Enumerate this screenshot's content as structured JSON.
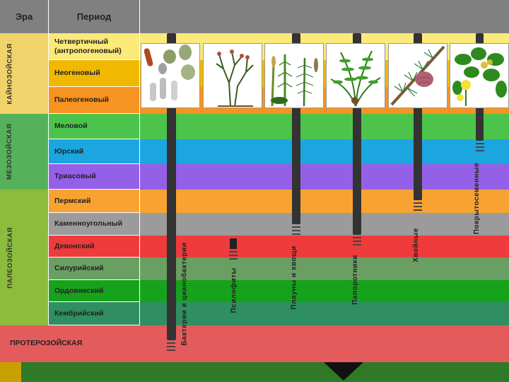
{
  "header": {
    "era": "Эра",
    "period": "Период"
  },
  "eras": [
    {
      "name": "КАЙНОЗОЙСКАЯ",
      "color": "#f1d36b"
    },
    {
      "name": "МЕЗОЗОЙСКАЯ",
      "color": "#56b25a"
    },
    {
      "name": "ПАЛЕОЗОЙСКАЯ",
      "color": "#8cbc3c"
    },
    {
      "name": "ПРОТЕРОЗОЙСКАЯ",
      "color": "#e45b5b"
    }
  ],
  "periods": [
    {
      "name": "Четвертичный (антропогеновый)",
      "color": "#fbe97a"
    },
    {
      "name": "Неогеновый",
      "color": "#f0b800"
    },
    {
      "name": "Палеогеновый",
      "color": "#f79321"
    },
    {
      "name": "Меловой",
      "color": "#4cc44c"
    },
    {
      "name": "Юрский",
      "color": "#1ca6df"
    },
    {
      "name": "Триасовый",
      "color": "#9460e8"
    },
    {
      "name": "Пермский",
      "color": "#f8a331"
    },
    {
      "name": "Каменноугольный",
      "color": "#9b9b9b"
    },
    {
      "name": "Девонский",
      "color": "#ef3b3b"
    },
    {
      "name": "Силурийский",
      "color": "#6a9f63"
    },
    {
      "name": "Ордовикский",
      "color": "#16a31b"
    },
    {
      "name": "Кембрийский",
      "color": "#2f8f63"
    }
  ],
  "groups": [
    "Бактерии и цианобактерии",
    "Псилофиты",
    "Плауны и хвощи",
    "Папоротники",
    "Хвойные",
    "Покрытосеменные"
  ],
  "illustrations": [
    "bacteria-illustration",
    "psilophyte-illustration",
    "clubmoss-horsetail-illustration",
    "fern-illustration",
    "conifer-illustration",
    "angiosperm-illustration"
  ]
}
